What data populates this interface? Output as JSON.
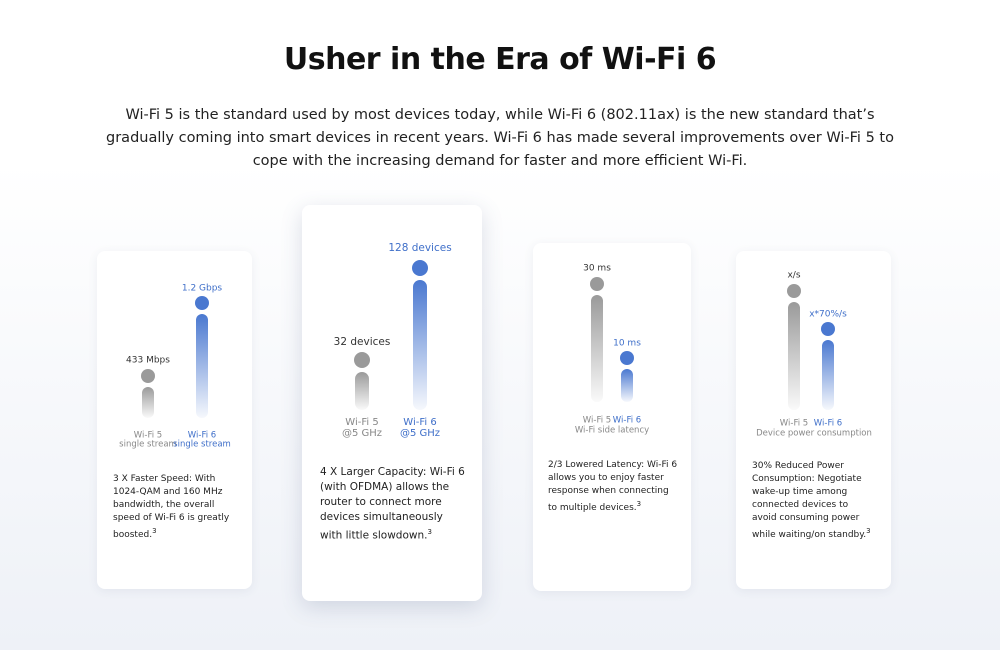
{
  "header": {
    "title": "Usher in the Era of Wi-Fi 6",
    "description": "Wi-Fi 5 is the standard used by most devices today, while Wi-Fi 6 (802.11ax) is the new standard that’s gradually coming into smart devices in recent years. Wi-Fi 6 has made several improvements over Wi-Fi 5 to cope with the increasing demand for faster and more efficient Wi-Fi."
  },
  "cards": [
    {
      "bars": [
        {
          "value_label": "433 Mbps",
          "name": "Wi-Fi 5",
          "sub": "single stream"
        },
        {
          "value_label": "1.2 Gbps",
          "name": "Wi-Fi 6",
          "sub": "single stream"
        }
      ],
      "text": "3 X Faster Speed: With 1024-QAM and 160 MHz bandwidth, the overall speed of Wi-Fi 6 is greatly boosted.",
      "footnote": "3"
    },
    {
      "bars": [
        {
          "value_label": "32 devices",
          "name": "Wi-Fi 5",
          "sub": "@5 GHz"
        },
        {
          "value_label": "128 devices",
          "name": "Wi-Fi 6",
          "sub": "@5 GHz"
        }
      ],
      "text": "4 X Larger Capacity: Wi-Fi 6 (with OFDMA) allows the router to connect more devices simultaneously with little slowdown.",
      "footnote": "3"
    },
    {
      "bars": [
        {
          "value_label": "30 ms",
          "name": "Wi-Fi 5"
        },
        {
          "value_label": "10 ms",
          "name": "Wi-Fi 6"
        }
      ],
      "caption": "Wi-Fi side latency",
      "text": "2/3 Lowered Latency: Wi-Fi 6 allows you to enjoy faster response when connecting to multiple devices.",
      "footnote": "3"
    },
    {
      "bars": [
        {
          "value_label": "x/s",
          "name": "Wi-Fi 5"
        },
        {
          "value_label": "x*70%/s",
          "name": "Wi-Fi 6"
        }
      ],
      "caption": "Device power consumption",
      "text": "30% Reduced Power Consumption: Negotiate wake-up time among connected devices to avoid consuming power while waiting/on standby.",
      "footnote": "3"
    }
  ]
}
